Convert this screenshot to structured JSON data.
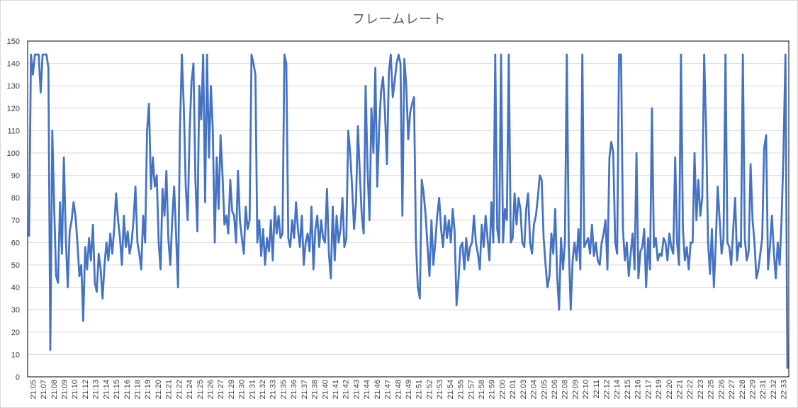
{
  "chart_data": {
    "type": "line",
    "title": "フレームレート",
    "xlabel": "",
    "ylabel": "",
    "ylim": [
      0,
      150
    ],
    "y_ticks": [
      0,
      10,
      20,
      30,
      40,
      50,
      60,
      70,
      80,
      90,
      100,
      110,
      120,
      130,
      140,
      150
    ],
    "x_tick_labels": [
      "21:05",
      "21:07",
      "21:08",
      "21:09",
      "21:10",
      "21:12",
      "21:13",
      "21:14",
      "21:15",
      "21:16",
      "21:18",
      "21:19",
      "21:20",
      "21:21",
      "21:22",
      "21:24",
      "21:25",
      "21:26",
      "21:27",
      "21:29",
      "21:30",
      "21:31",
      "21:32",
      "21:33",
      "21:35",
      "21:36",
      "21:37",
      "21:38",
      "21:40",
      "21:41",
      "21:42",
      "21:43",
      "21:44",
      "21:46",
      "21:47",
      "21:48",
      "21:49",
      "21:51",
      "21:52",
      "21:53",
      "21:54",
      "21:55",
      "21:57",
      "21:58",
      "21:59",
      "22:00",
      "22:01",
      "22:03",
      "22:04",
      "22:05",
      "22:06",
      "22:08",
      "22:09",
      "22:10",
      "22:11",
      "22:12",
      "22:14",
      "22:15",
      "22:16",
      "22:17",
      "22:19",
      "22:20",
      "22:21",
      "22:22",
      "22:23",
      "22:25",
      "22:26",
      "22:27",
      "22:28",
      "22:29",
      "22:31",
      "22:32",
      "22:33"
    ],
    "grid": true,
    "legend": "none",
    "series_color": "#4472c4",
    "series": [
      {
        "values": [
          63,
          144,
          135,
          144,
          144,
          144,
          127,
          144,
          144,
          144,
          138,
          12,
          110,
          75,
          45,
          42,
          78,
          55,
          98,
          62,
          40,
          65,
          70,
          78,
          72,
          60,
          45,
          50,
          25,
          58,
          48,
          62,
          52,
          68,
          42,
          38,
          55,
          48,
          35,
          50,
          60,
          52,
          64,
          55,
          66,
          82,
          70,
          62,
          50,
          72,
          58,
          65,
          55,
          60,
          70,
          85,
          60,
          55,
          48,
          72,
          60,
          110,
          122,
          84,
          98,
          85,
          90,
          60,
          48,
          84,
          72,
          92,
          62,
          50,
          70,
          85,
          64,
          40,
          110,
          144,
          120,
          85,
          70,
          110,
          132,
          140,
          88,
          65,
          130,
          115,
          144,
          78,
          144,
          98,
          130,
          110,
          60,
          98,
          75,
          108,
          90,
          68,
          72,
          64,
          88,
          74,
          72,
          60,
          92,
          70,
          62,
          55,
          76,
          66,
          70,
          144,
          140,
          135,
          60,
          70,
          54,
          66,
          50,
          62,
          56,
          70,
          52,
          76,
          64,
          72,
          62,
          64,
          144,
          140,
          62,
          58,
          70,
          62,
          78,
          66,
          58,
          72,
          50,
          60,
          64,
          56,
          76,
          48,
          66,
          72,
          58,
          70,
          62,
          60,
          84,
          55,
          44,
          76,
          52,
          72,
          60,
          66,
          80,
          58,
          62,
          110,
          100,
          85,
          66,
          78,
          112,
          90,
          72,
          64,
          130,
          92,
          70,
          120,
          100,
          138,
          85,
          112,
          128,
          134,
          118,
          95,
          136,
          144,
          125,
          132,
          140,
          144,
          140,
          72,
          142,
          130,
          106,
          118,
          122,
          125,
          60,
          40,
          35,
          88,
          82,
          72,
          58,
          45,
          70,
          50,
          60,
          72,
          80,
          66,
          58,
          72,
          62,
          70,
          60,
          75,
          65,
          32,
          44,
          58,
          60,
          48,
          62,
          52,
          58,
          60,
          72,
          60,
          55,
          48,
          68,
          58,
          72,
          62,
          52,
          78,
          60,
          144,
          66,
          60,
          144,
          60,
          75,
          70,
          144,
          60,
          62,
          82,
          68,
          80,
          75,
          60,
          58,
          75,
          82,
          60,
          55,
          68,
          72,
          80,
          90,
          88,
          62,
          50,
          40,
          45,
          64,
          55,
          75,
          45,
          30,
          62,
          48,
          60,
          144,
          58,
          30,
          52,
          60,
          52,
          66,
          48,
          144,
          58,
          60,
          62,
          55,
          68,
          54,
          60,
          52,
          50,
          60,
          64,
          70,
          48,
          98,
          105,
          100,
          60,
          55,
          144,
          144,
          66,
          52,
          60,
          45,
          55,
          64,
          48,
          100,
          44,
          56,
          58,
          66,
          40,
          62,
          48,
          120,
          58,
          62,
          52,
          55,
          54,
          62,
          60,
          52,
          64,
          58,
          55,
          98,
          60,
          50,
          144,
          66,
          52,
          58,
          48,
          60,
          60,
          100,
          70,
          88,
          72,
          80,
          144,
          110,
          60,
          46,
          66,
          40,
          60,
          85,
          70,
          55,
          62,
          144,
          60,
          58,
          50,
          66,
          80,
          52,
          60,
          58,
          144,
          62,
          52,
          56,
          95,
          70,
          60,
          44,
          48,
          55,
          62,
          102,
          108,
          48,
          58,
          72,
          56,
          44,
          60,
          50,
          70,
          100,
          144,
          4
        ]
      }
    ]
  }
}
